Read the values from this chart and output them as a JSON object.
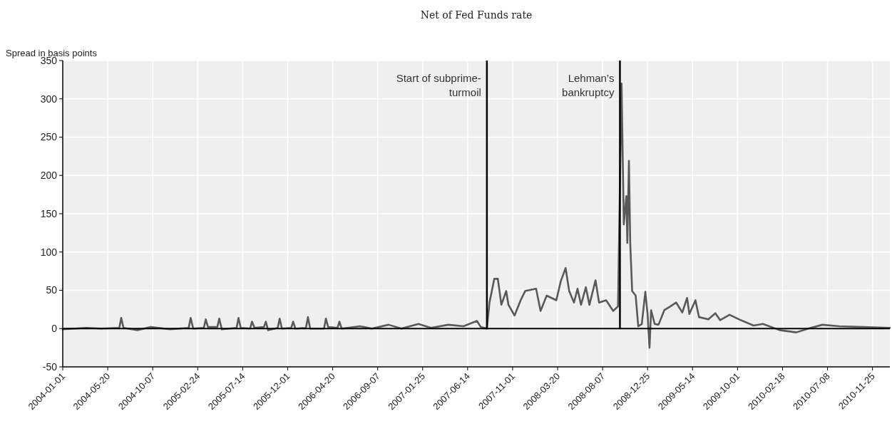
{
  "chart_data": {
    "type": "line",
    "title": "Net of Fed Funds rate",
    "ylabel": "Spread in basis points",
    "xlim": [
      "2004-01-01",
      "2011-01-18"
    ],
    "xticks": [
      "2004-01-01",
      "2004-05-20",
      "2004-10-07",
      "2005-02-24",
      "2005-07-14",
      "2005-12-01",
      "2006-04-20",
      "2006-09-07",
      "2007-01-25",
      "2007-06-14",
      "2007-11-01",
      "2008-03-20",
      "2008-08-07",
      "2008-12-25",
      "2009-05-14",
      "2009-10-01",
      "2010-02-18",
      "2010-07-08",
      "2010-11-25"
    ],
    "ylim": [
      -50,
      350
    ],
    "yticks": [
      -50,
      0,
      50,
      100,
      150,
      200,
      250,
      300,
      350
    ],
    "grid": true,
    "ref_lines": [
      {
        "axis": "y",
        "value": 0,
        "color": "#000000"
      },
      {
        "axis": "x",
        "value": "2007-08-13",
        "label": "Start of subprime-\nturmoil",
        "color": "#000000"
      },
      {
        "axis": "x",
        "value": "2008-09-30",
        "label": "Lehman’s\nbankruptcy",
        "color": "#000000"
      }
    ],
    "series": [
      {
        "color": "#595959",
        "x": [
          "2004-01-01",
          "2004-03-15",
          "2004-05-01",
          "2004-06-25",
          "2004-07-01",
          "2004-07-08",
          "2004-08-20",
          "2004-10-01",
          "2004-12-01",
          "2005-01-27",
          "2005-02-02",
          "2005-02-10",
          "2005-03-15",
          "2005-03-21",
          "2005-03-28",
          "2005-04-26",
          "2005-05-02",
          "2005-05-10",
          "2005-06-25",
          "2005-07-01",
          "2005-07-08",
          "2005-08-06",
          "2005-08-12",
          "2005-08-20",
          "2005-09-18",
          "2005-09-24",
          "2005-10-01",
          "2005-10-31",
          "2005-11-06",
          "2005-11-13",
          "2005-12-12",
          "2005-12-18",
          "2005-12-25",
          "2006-01-27",
          "2006-02-02",
          "2006-02-09",
          "2006-03-24",
          "2006-03-30",
          "2006-04-06",
          "2006-05-05",
          "2006-05-11",
          "2006-05-18",
          "2006-07-14",
          "2006-08-20",
          "2006-10-11",
          "2006-11-20",
          "2007-01-12",
          "2007-02-20",
          "2007-04-15",
          "2007-06-01",
          "2007-07-13",
          "2007-07-25",
          "2007-08-13",
          "2007-08-21",
          "2007-09-05",
          "2007-09-16",
          "2007-09-27",
          "2007-10-12",
          "2007-10-19",
          "2007-11-07",
          "2007-11-26",
          "2007-12-10",
          "2008-01-13",
          "2008-01-27",
          "2008-02-15",
          "2008-03-16",
          "2008-03-30",
          "2008-04-14",
          "2008-04-25",
          "2008-05-10",
          "2008-05-21",
          "2008-06-01",
          "2008-06-16",
          "2008-06-27",
          "2008-07-16",
          "2008-07-27",
          "2008-08-18",
          "2008-09-09",
          "2008-09-24",
          "2008-10-05",
          "2008-10-12",
          "2008-10-20",
          "2008-10-23",
          "2008-10-28",
          "2008-11-01",
          "2008-11-07",
          "2008-11-18",
          "2008-11-26",
          "2008-12-07",
          "2008-12-18",
          "2008-12-25",
          "2008-12-31",
          "2009-01-05",
          "2009-01-16",
          "2009-01-28",
          "2009-02-15",
          "2009-03-06",
          "2009-03-24",
          "2009-04-12",
          "2009-04-27",
          "2009-05-04",
          "2009-05-23",
          "2009-06-03",
          "2009-07-02",
          "2009-07-24",
          "2009-08-08",
          "2009-09-06",
          "2009-10-06",
          "2009-11-20",
          "2009-12-19",
          "2010-02-09",
          "2010-04-02",
          "2010-05-09",
          "2010-06-22",
          "2010-08-13",
          "2010-10-26",
          "2011-01-18"
        ],
        "values": [
          -1,
          1,
          0,
          1,
          14,
          1,
          -2,
          2,
          -1,
          1,
          14,
          0,
          1,
          12,
          2,
          2,
          13,
          -1,
          1,
          14,
          1,
          0,
          9,
          1,
          2,
          9,
          -2,
          1,
          13,
          0,
          1,
          9,
          0,
          1,
          15,
          0,
          0,
          13,
          2,
          1,
          9,
          0,
          3,
          0,
          5,
          0,
          6,
          1,
          5,
          3,
          10,
          2,
          0,
          34,
          65,
          65,
          31,
          49,
          31,
          17,
          37,
          49,
          52,
          23,
          43,
          37,
          62,
          79,
          49,
          34,
          52,
          31,
          54,
          31,
          63,
          34,
          37,
          23,
          29,
          320,
          136,
          173,
          112,
          219,
          112,
          49,
          43,
          3,
          6,
          48,
          19,
          -25,
          24,
          6,
          5,
          24,
          29,
          34,
          21,
          40,
          19,
          37,
          15,
          12,
          20,
          11,
          18,
          12,
          4,
          6,
          -2,
          -5,
          0,
          5,
          3,
          2,
          1
        ]
      }
    ]
  }
}
